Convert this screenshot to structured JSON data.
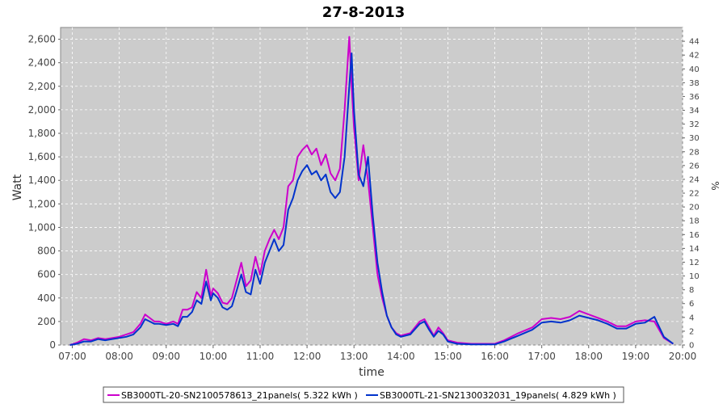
{
  "chart_data": {
    "type": "line",
    "title": "27-8-2013",
    "xlabel": "time",
    "ylabel": "Watt",
    "y2label": "%",
    "xlim": [
      6.75,
      20.0
    ],
    "ylim": [
      0,
      2700
    ],
    "y2lim": [
      0,
      46
    ],
    "x_ticks": [
      "07:00",
      "08:00",
      "09:00",
      "10:00",
      "11:00",
      "12:00",
      "13:00",
      "14:00",
      "15:00",
      "16:00",
      "17:00",
      "18:00",
      "19:00",
      "20:00"
    ],
    "y_ticks": [
      "0",
      "200",
      "400",
      "600",
      "800",
      "1,000",
      "1,200",
      "1,400",
      "1,600",
      "1,800",
      "2,000",
      "2,200",
      "2,400",
      "2,600"
    ],
    "y2_ticks": [
      "0",
      "2",
      "4",
      "6",
      "8",
      "10",
      "12",
      "14",
      "16",
      "18",
      "20",
      "22",
      "24",
      "26",
      "28",
      "30",
      "32",
      "34",
      "36",
      "38",
      "40",
      "42",
      "44"
    ],
    "grid": true,
    "legend_position": "bottom",
    "background": "#cccccc",
    "series": [
      {
        "name": "SB3000TL-20-SN2100578613_21panels( 5.322 kWh )",
        "color": "#cc00cc",
        "x": [
          6.95,
          7.1,
          7.25,
          7.4,
          7.55,
          7.7,
          7.85,
          8.0,
          8.15,
          8.3,
          8.45,
          8.55,
          8.65,
          8.75,
          8.85,
          9.0,
          9.15,
          9.25,
          9.35,
          9.45,
          9.55,
          9.65,
          9.75,
          9.85,
          9.95,
          10.0,
          10.1,
          10.2,
          10.3,
          10.4,
          10.5,
          10.6,
          10.7,
          10.8,
          10.9,
          11.0,
          11.1,
          11.2,
          11.3,
          11.4,
          11.5,
          11.6,
          11.7,
          11.8,
          11.9,
          12.0,
          12.1,
          12.2,
          12.3,
          12.4,
          12.5,
          12.6,
          12.7,
          12.8,
          12.9,
          12.95,
          13.0,
          13.1,
          13.2,
          13.3,
          13.4,
          13.5,
          13.6,
          13.7,
          13.8,
          13.9,
          14.0,
          14.2,
          14.4,
          14.5,
          14.6,
          14.7,
          14.8,
          14.9,
          15.0,
          15.2,
          15.5,
          15.8,
          16.0,
          16.2,
          16.5,
          16.8,
          17.0,
          17.2,
          17.4,
          17.6,
          17.8,
          18.0,
          18.2,
          18.4,
          18.6,
          18.8,
          19.0,
          19.2,
          19.4,
          19.6,
          19.8
        ],
        "values": [
          0,
          20,
          50,
          40,
          60,
          50,
          60,
          70,
          90,
          110,
          180,
          260,
          230,
          200,
          200,
          180,
          200,
          180,
          300,
          300,
          320,
          450,
          400,
          640,
          420,
          480,
          440,
          360,
          350,
          400,
          550,
          700,
          500,
          550,
          750,
          600,
          800,
          900,
          980,
          900,
          1000,
          1350,
          1400,
          1600,
          1660,
          1700,
          1620,
          1670,
          1530,
          1620,
          1460,
          1400,
          1500,
          2000,
          2620,
          2200,
          1850,
          1400,
          1700,
          1400,
          1000,
          600,
          400,
          250,
          150,
          100,
          80,
          100,
          200,
          220,
          150,
          80,
          150,
          100,
          40,
          20,
          10,
          10,
          10,
          40,
          100,
          150,
          220,
          230,
          220,
          240,
          290,
          260,
          230,
          200,
          160,
          160,
          200,
          210,
          200,
          60,
          10
        ]
      },
      {
        "name": "SB3000TL-21-SN2130032031_19panels( 4.829 kWh )",
        "color": "#0033cc",
        "x": [
          6.95,
          7.1,
          7.25,
          7.4,
          7.55,
          7.7,
          7.85,
          8.0,
          8.15,
          8.3,
          8.45,
          8.55,
          8.65,
          8.75,
          8.85,
          9.0,
          9.15,
          9.25,
          9.35,
          9.45,
          9.55,
          9.65,
          9.75,
          9.85,
          9.95,
          10.0,
          10.1,
          10.2,
          10.3,
          10.4,
          10.5,
          10.6,
          10.7,
          10.8,
          10.9,
          11.0,
          11.1,
          11.2,
          11.3,
          11.4,
          11.5,
          11.6,
          11.7,
          11.8,
          11.9,
          12.0,
          12.1,
          12.2,
          12.3,
          12.4,
          12.5,
          12.6,
          12.7,
          12.8,
          12.9,
          12.95,
          13.0,
          13.1,
          13.2,
          13.3,
          13.4,
          13.5,
          13.6,
          13.7,
          13.8,
          13.9,
          14.0,
          14.2,
          14.4,
          14.5,
          14.6,
          14.7,
          14.8,
          14.9,
          15.0,
          15.2,
          15.5,
          15.8,
          16.0,
          16.2,
          16.5,
          16.8,
          17.0,
          17.2,
          17.4,
          17.6,
          17.8,
          18.0,
          18.2,
          18.4,
          18.6,
          18.8,
          19.0,
          19.2,
          19.4,
          19.6,
          19.8
        ],
        "values": [
          0,
          10,
          30,
          30,
          50,
          40,
          50,
          60,
          70,
          90,
          150,
          220,
          200,
          180,
          180,
          170,
          180,
          160,
          240,
          240,
          280,
          380,
          350,
          540,
          380,
          440,
          400,
          320,
          300,
          330,
          460,
          600,
          450,
          430,
          640,
          520,
          700,
          800,
          900,
          800,
          850,
          1150,
          1250,
          1400,
          1480,
          1530,
          1450,
          1480,
          1400,
          1450,
          1300,
          1250,
          1300,
          1600,
          2200,
          2480,
          2000,
          1450,
          1350,
          1600,
          1100,
          700,
          450,
          250,
          150,
          90,
          70,
          90,
          180,
          200,
          130,
          70,
          120,
          90,
          30,
          10,
          5,
          5,
          5,
          30,
          80,
          130,
          190,
          200,
          190,
          210,
          250,
          230,
          210,
          180,
          140,
          140,
          180,
          190,
          240,
          70,
          10
        ]
      }
    ]
  }
}
